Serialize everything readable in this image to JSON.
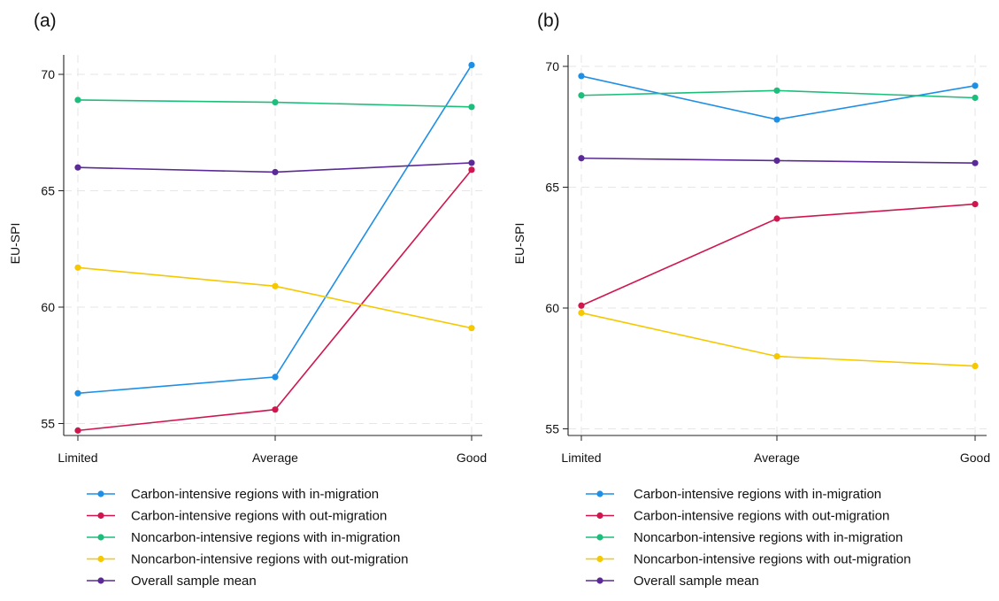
{
  "colors": {
    "in_carbon": "#1f8fe6",
    "out_carbon": "#d0164f",
    "in_noncarbon": "#1dbe7b",
    "out_noncarbon": "#f5c800",
    "overall": "#5b2a96",
    "grid": "#e6e6e6",
    "axis": "#222222"
  },
  "chart_data": [
    {
      "type": "line",
      "panel_label": "(a)",
      "ylabel": "EU-SPI",
      "xlabel": "",
      "categories": [
        "Limited",
        "Average",
        "Good"
      ],
      "yticks": [
        55,
        60,
        65,
        70
      ],
      "ylim": [
        54.5,
        71.3
      ],
      "grid": true,
      "legend_position": "bottom",
      "series": [
        {
          "name": "Carbon-intensive regions with in-migration",
          "color_key": "in_carbon",
          "values": [
            56.3,
            57.0,
            70.4
          ]
        },
        {
          "name": "Carbon-intensive regions with out-migration",
          "color_key": "out_carbon",
          "values": [
            54.7,
            55.6,
            65.9
          ]
        },
        {
          "name": "Noncarbon-intensive regions with in-migration",
          "color_key": "in_noncarbon",
          "values": [
            68.9,
            68.8,
            68.6
          ]
        },
        {
          "name": "Noncarbon-intensive regions with out-migration",
          "color_key": "out_noncarbon",
          "values": [
            61.7,
            60.9,
            59.1
          ]
        },
        {
          "name": "Overall sample mean",
          "color_key": "overall",
          "values": [
            66.0,
            65.8,
            66.2
          ]
        }
      ]
    },
    {
      "type": "line",
      "panel_label": "(b)",
      "ylabel": "EU-SPI",
      "xlabel": "",
      "categories": [
        "Limited",
        "Average",
        "Good"
      ],
      "yticks": [
        55,
        60,
        65,
        70
      ],
      "ylim": [
        54.5,
        70.5
      ],
      "grid": true,
      "legend_position": "bottom",
      "series": [
        {
          "name": "Carbon-intensive regions with in-migration",
          "color_key": "in_carbon",
          "values": [
            69.6,
            67.8,
            69.2
          ]
        },
        {
          "name": "Carbon-intensive regions with out-migration",
          "color_key": "out_carbon",
          "values": [
            60.1,
            63.7,
            64.3
          ]
        },
        {
          "name": "Noncarbon-intensive regions with in-migration",
          "color_key": "in_noncarbon",
          "values": [
            68.8,
            69.0,
            68.7
          ]
        },
        {
          "name": "Noncarbon-intensive regions with out-migration",
          "color_key": "out_noncarbon",
          "values": [
            59.8,
            58.0,
            57.6
          ]
        },
        {
          "name": "Overall sample mean",
          "color_key": "overall",
          "values": [
            66.2,
            66.1,
            66.0
          ]
        }
      ]
    }
  ]
}
